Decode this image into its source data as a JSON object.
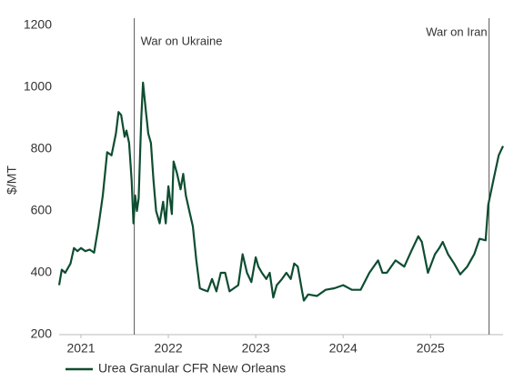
{
  "chart_data": {
    "type": "line",
    "y_label": "$/MT",
    "x": [
      2021.25,
      2021.28,
      2021.32,
      2021.38,
      2021.42,
      2021.46,
      2021.5,
      2021.55,
      2021.6,
      2021.65,
      2021.7,
      2021.75,
      2021.8,
      2021.85,
      2021.9,
      2021.93,
      2021.96,
      2022.0,
      2022.02,
      2022.05,
      2022.08,
      2022.1,
      2022.12,
      2022.14,
      2022.16,
      2022.19,
      2022.21,
      2022.24,
      2022.27,
      2022.3,
      2022.33,
      2022.36,
      2022.4,
      2022.44,
      2022.47,
      2022.5,
      2022.54,
      2022.56,
      2022.6,
      2022.64,
      2022.67,
      2022.7,
      2022.74,
      2022.78,
      2022.82,
      2022.86,
      2022.9,
      2022.95,
      2023.0,
      2023.05,
      2023.1,
      2023.15,
      2023.2,
      2023.25,
      2023.3,
      2023.35,
      2023.4,
      2023.45,
      2023.5,
      2023.53,
      2023.57,
      2023.62,
      2023.66,
      2023.7,
      2023.74,
      2023.8,
      2023.85,
      2023.9,
      2023.94,
      2023.98,
      2024.03,
      2024.05,
      2024.1,
      2024.2,
      2024.3,
      2024.4,
      2024.5,
      2024.6,
      2024.7,
      2024.8,
      2024.9,
      2024.95,
      2025.0,
      2025.1,
      2025.2,
      2025.28,
      2025.36,
      2025.4,
      2025.47,
      2025.55,
      2025.6,
      2025.64,
      2025.7,
      2025.77,
      2025.84,
      2025.92,
      2026.0,
      2026.06,
      2026.13,
      2026.16,
      2026.22,
      2026.28,
      2026.33
    ],
    "series": [
      {
        "name": "Urea Granular CFR New Orleans",
        "color": "#0e4d31",
        "values": [
          360,
          410,
          400,
          430,
          480,
          470,
          480,
          470,
          475,
          465,
          550,
          650,
          790,
          780,
          850,
          920,
          910,
          840,
          860,
          820,
          700,
          560,
          650,
          600,
          640,
          900,
          1015,
          930,
          850,
          820,
          700,
          600,
          560,
          630,
          560,
          680,
          590,
          760,
          720,
          670,
          720,
          650,
          600,
          550,
          440,
          350,
          345,
          340,
          380,
          340,
          400,
          400,
          340,
          350,
          360,
          460,
          400,
          370,
          450,
          420,
          400,
          380,
          400,
          320,
          360,
          380,
          400,
          380,
          430,
          420,
          340,
          310,
          330,
          325,
          345,
          350,
          360,
          345,
          345,
          400,
          440,
          400,
          400,
          440,
          420,
          470,
          518,
          500,
          400,
          460,
          480,
          500,
          460,
          430,
          395,
          420,
          460,
          510,
          505,
          620,
          700,
          780,
          810
        ]
      }
    ],
    "xlim": [
      2021.25,
      2026.33
    ],
    "xticks": [
      {
        "value": 2021.5,
        "label": "2021"
      },
      {
        "value": 2022.5,
        "label": "2022"
      },
      {
        "value": 2023.5,
        "label": "2023"
      },
      {
        "value": 2024.5,
        "label": "2024"
      },
      {
        "value": 2025.5,
        "label": "2025"
      }
    ],
    "ylim": [
      200,
      1200
    ],
    "yticks": [
      200,
      400,
      600,
      800,
      1000,
      1200
    ],
    "annotations": [
      {
        "text": "War on Ukraine",
        "x": 2022.11
      },
      {
        "text": "War on Iran",
        "x": 2026.17
      }
    ],
    "legend": "bottom"
  }
}
